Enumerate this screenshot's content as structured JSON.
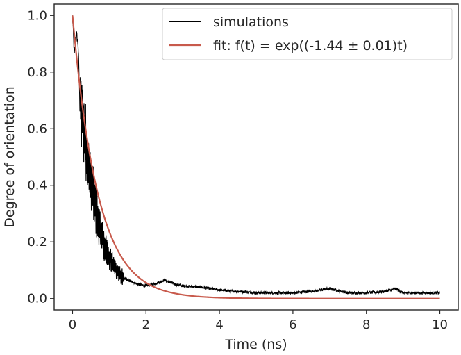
{
  "chart_data": {
    "type": "line",
    "xlabel": "Time (ns)",
    "ylabel": "Degree of orientation",
    "xlim": [
      -0.5,
      10.5
    ],
    "ylim": [
      -0.04,
      1.04
    ],
    "xticks": [
      0,
      2,
      4,
      6,
      8,
      10
    ],
    "yticks": [
      0.0,
      0.2,
      0.4,
      0.6,
      0.8,
      1.0
    ],
    "xtick_labels": [
      "0",
      "2",
      "4",
      "6",
      "8",
      "10"
    ],
    "ytick_labels": [
      "0.0",
      "0.2",
      "0.4",
      "0.6",
      "0.8",
      "1.0"
    ],
    "grid": false,
    "legend_position": "top-right",
    "series": [
      {
        "name": "simulations",
        "color": "#000000",
        "x": [
          0,
          0.05,
          0.1,
          0.15,
          0.2,
          0.3,
          0.4,
          0.5,
          0.6,
          0.7,
          0.8,
          0.9,
          1.0,
          1.1,
          1.2,
          1.3,
          1.4,
          1.5,
          1.6,
          1.8,
          2.0,
          2.2,
          2.5,
          2.8,
          3.0,
          3.5,
          4.0,
          4.5,
          5.0,
          5.5,
          6.0,
          6.5,
          7.0,
          7.5,
          8.0,
          8.5,
          8.8,
          9.0,
          9.5,
          10.0
        ],
        "y": [
          1.0,
          0.86,
          0.94,
          0.9,
          0.7,
          0.62,
          0.5,
          0.42,
          0.34,
          0.27,
          0.22,
          0.17,
          0.15,
          0.12,
          0.1,
          0.08,
          0.07,
          0.065,
          0.06,
          0.05,
          0.045,
          0.05,
          0.065,
          0.05,
          0.045,
          0.04,
          0.03,
          0.025,
          0.02,
          0.02,
          0.02,
          0.025,
          0.035,
          0.02,
          0.02,
          0.025,
          0.035,
          0.02,
          0.02,
          0.02
        ]
      },
      {
        "name": "fit: f(t) = exp((-1.44 ± 0.01)t)",
        "color": "#c85a4c",
        "function": "exp(-1.44*t)",
        "x_range": [
          0,
          10
        ]
      }
    ]
  }
}
